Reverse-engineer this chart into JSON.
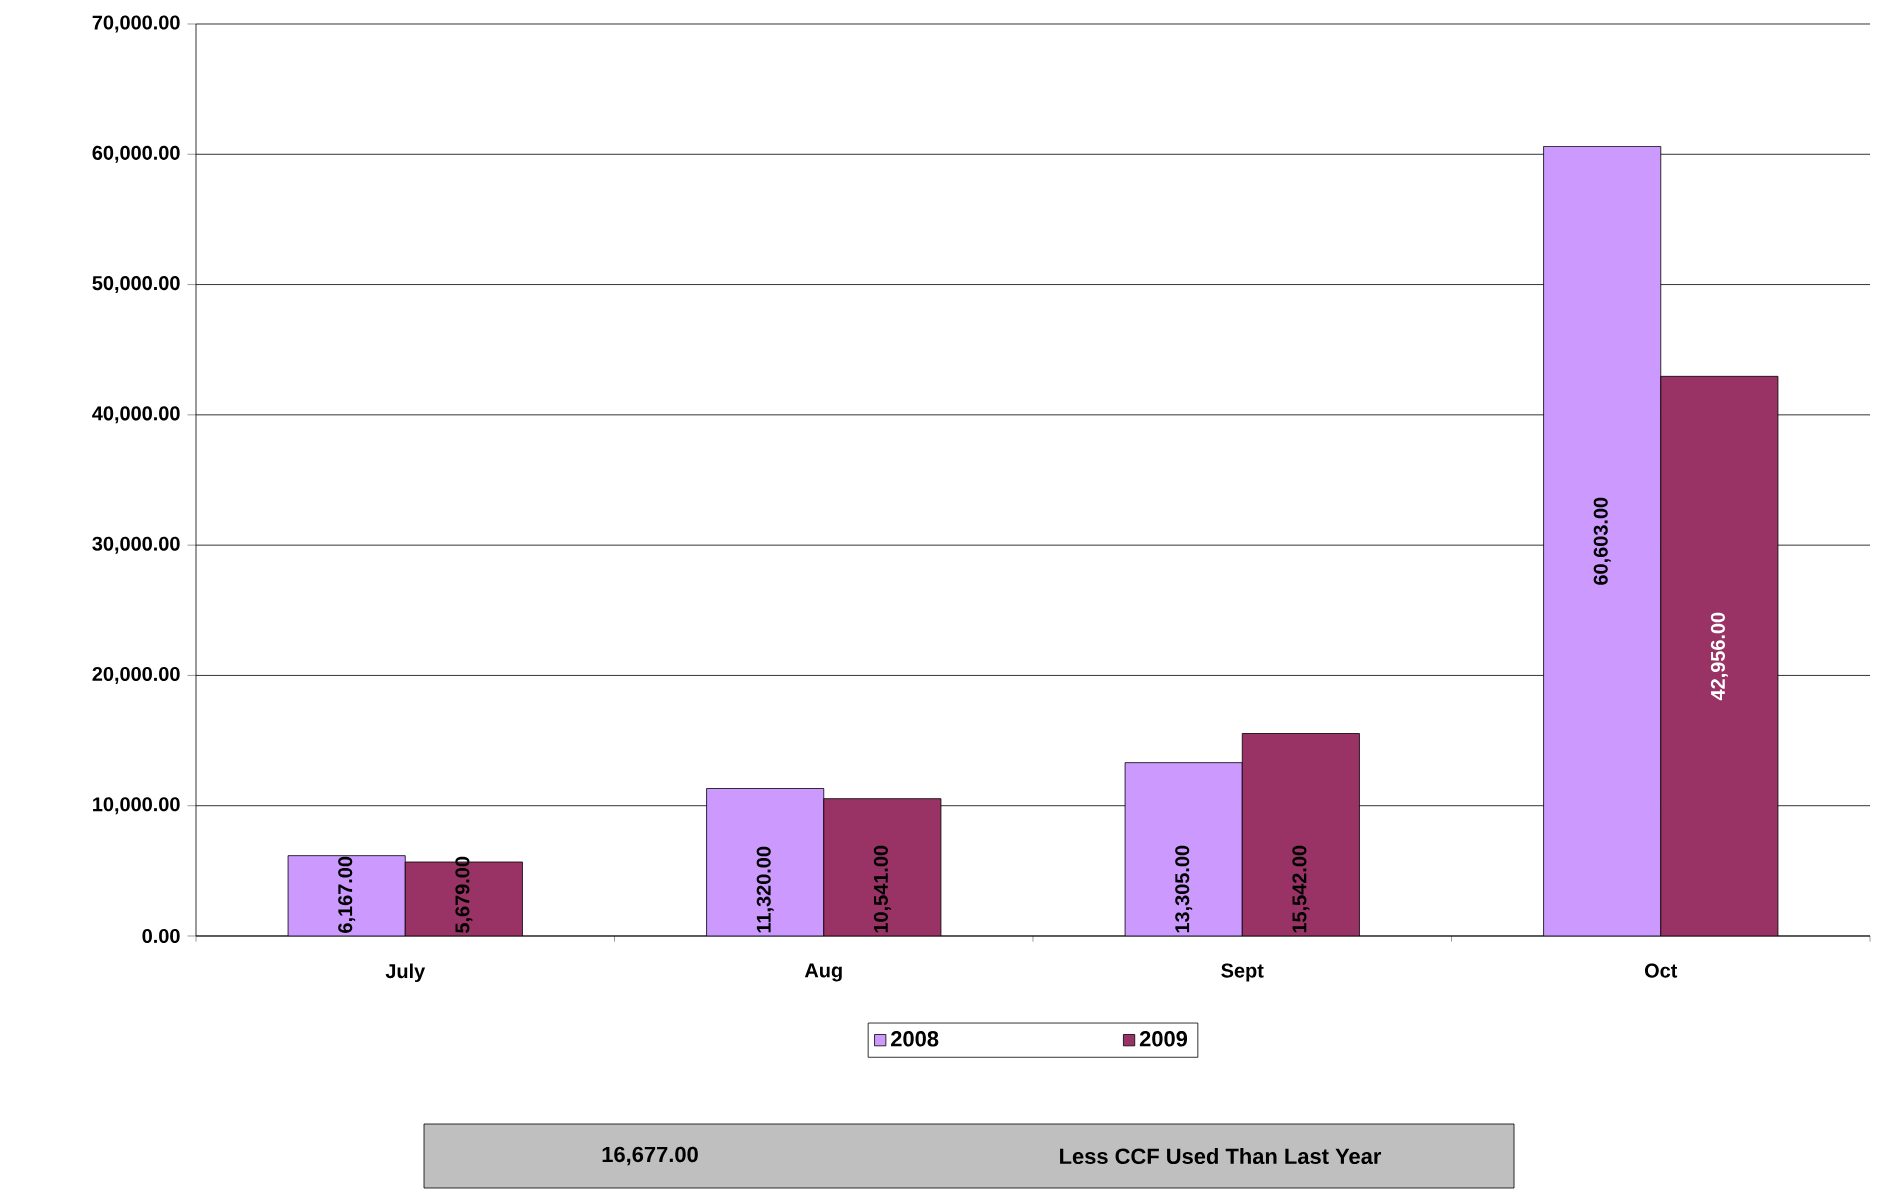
{
  "chart_data": {
    "type": "bar",
    "categories": [
      "July",
      "Aug",
      "Sept",
      "Oct"
    ],
    "series": [
      {
        "name": "2008",
        "color": "#cc99ff",
        "values": [
          6167,
          11320,
          13305,
          60603
        ],
        "value_labels": [
          "6,167.00",
          "11,320.00",
          "13,305.00",
          "60,603.00"
        ]
      },
      {
        "name": "2009",
        "color": "#993366",
        "values": [
          5679,
          10541,
          15542,
          42956
        ],
        "value_labels": [
          "5,679.00",
          "10,541.00",
          "15,542.00",
          "42,956.00"
        ]
      }
    ],
    "ylim": [
      0,
      70000
    ],
    "yticks": [
      {
        "value": 0,
        "label": "0.00"
      },
      {
        "value": 10000,
        "label": "10,000.00"
      },
      {
        "value": 20000,
        "label": "20,000.00"
      },
      {
        "value": 30000,
        "label": "30,000.00"
      },
      {
        "value": 40000,
        "label": "40,000.00"
      },
      {
        "value": 50000,
        "label": "50,000.00"
      },
      {
        "value": 60000,
        "label": "60,000.00"
      },
      {
        "value": 70000,
        "label": "70,000.00"
      }
    ],
    "grid": "y",
    "legend": "bottom",
    "annotations": [
      "16,677.00",
      "Less CCF Used Than Last Year"
    ]
  }
}
